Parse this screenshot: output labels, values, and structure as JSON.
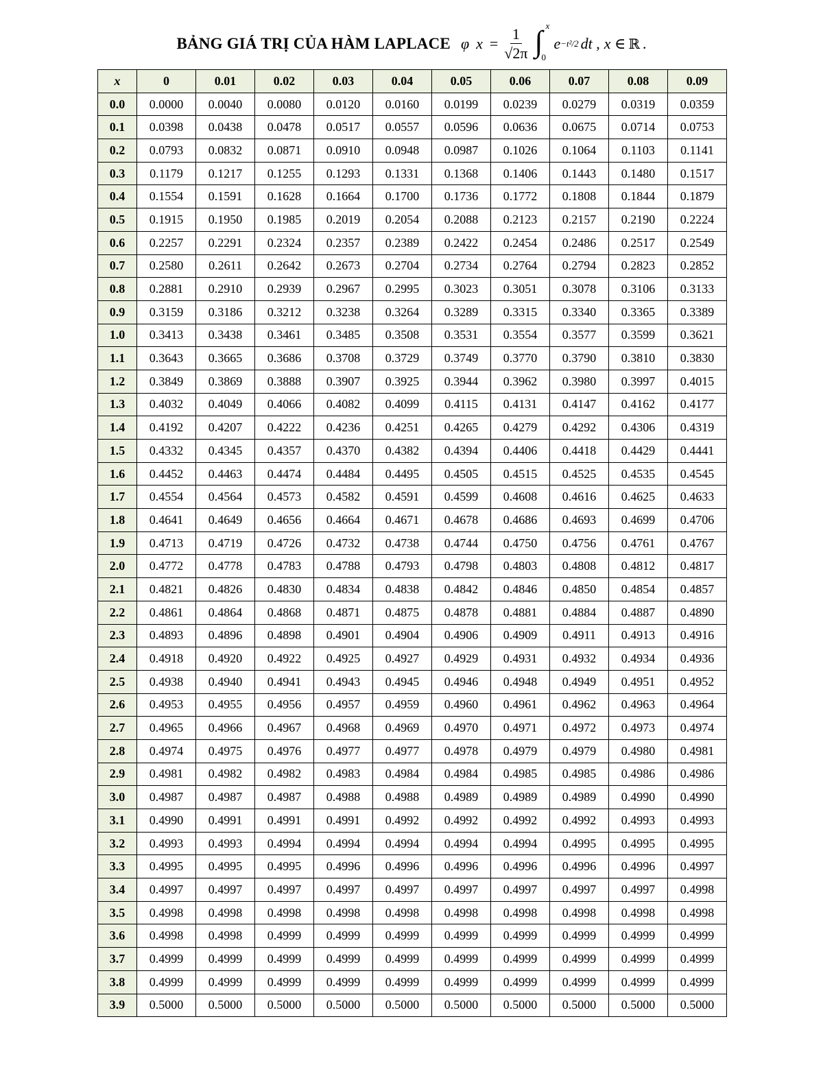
{
  "title": {
    "text": "BẢNG GIÁ TRỊ CỦA HÀM LAPLACE",
    "phi": "φ",
    "x": "x",
    "equals": "=",
    "numerator": "1",
    "denominator": "√2π",
    "integral": "∫",
    "upper_limit": "x",
    "lower_limit": "0",
    "integrand": "e",
    "exponent": "−t²/2",
    "dt": "dt ,",
    "membership": "x ∈",
    "reals": "ℝ",
    "period": "."
  },
  "table": {
    "corner": "x",
    "columns": [
      "0",
      "0.01",
      "0.02",
      "0.03",
      "0.04",
      "0.05",
      "0.06",
      "0.07",
      "0.08",
      "0.09"
    ],
    "rows": [
      {
        "x": "0.0",
        "v": [
          "0.0000",
          "0.0040",
          "0.0080",
          "0.0120",
          "0.0160",
          "0.0199",
          "0.0239",
          "0.0279",
          "0.0319",
          "0.0359"
        ]
      },
      {
        "x": "0.1",
        "v": [
          "0.0398",
          "0.0438",
          "0.0478",
          "0.0517",
          "0.0557",
          "0.0596",
          "0.0636",
          "0.0675",
          "0.0714",
          "0.0753"
        ]
      },
      {
        "x": "0.2",
        "v": [
          "0.0793",
          "0.0832",
          "0.0871",
          "0.0910",
          "0.0948",
          "0.0987",
          "0.1026",
          "0.1064",
          "0.1103",
          "0.1141"
        ]
      },
      {
        "x": "0.3",
        "v": [
          "0.1179",
          "0.1217",
          "0.1255",
          "0.1293",
          "0.1331",
          "0.1368",
          "0.1406",
          "0.1443",
          "0.1480",
          "0.1517"
        ]
      },
      {
        "x": "0.4",
        "v": [
          "0.1554",
          "0.1591",
          "0.1628",
          "0.1664",
          "0.1700",
          "0.1736",
          "0.1772",
          "0.1808",
          "0.1844",
          "0.1879"
        ]
      },
      {
        "x": "0.5",
        "v": [
          "0.1915",
          "0.1950",
          "0.1985",
          "0.2019",
          "0.2054",
          "0.2088",
          "0.2123",
          "0.2157",
          "0.2190",
          "0.2224"
        ]
      },
      {
        "x": "0.6",
        "v": [
          "0.2257",
          "0.2291",
          "0.2324",
          "0.2357",
          "0.2389",
          "0.2422",
          "0.2454",
          "0.2486",
          "0.2517",
          "0.2549"
        ]
      },
      {
        "x": "0.7",
        "v": [
          "0.2580",
          "0.2611",
          "0.2642",
          "0.2673",
          "0.2704",
          "0.2734",
          "0.2764",
          "0.2794",
          "0.2823",
          "0.2852"
        ]
      },
      {
        "x": "0.8",
        "v": [
          "0.2881",
          "0.2910",
          "0.2939",
          "0.2967",
          "0.2995",
          "0.3023",
          "0.3051",
          "0.3078",
          "0.3106",
          "0.3133"
        ]
      },
      {
        "x": "0.9",
        "v": [
          "0.3159",
          "0.3186",
          "0.3212",
          "0.3238",
          "0.3264",
          "0.3289",
          "0.3315",
          "0.3340",
          "0.3365",
          "0.3389"
        ]
      },
      {
        "x": "1.0",
        "v": [
          "0.3413",
          "0.3438",
          "0.3461",
          "0.3485",
          "0.3508",
          "0.3531",
          "0.3554",
          "0.3577",
          "0.3599",
          "0.3621"
        ]
      },
      {
        "x": "1.1",
        "v": [
          "0.3643",
          "0.3665",
          "0.3686",
          "0.3708",
          "0.3729",
          "0.3749",
          "0.3770",
          "0.3790",
          "0.3810",
          "0.3830"
        ]
      },
      {
        "x": "1.2",
        "v": [
          "0.3849",
          "0.3869",
          "0.3888",
          "0.3907",
          "0.3925",
          "0.3944",
          "0.3962",
          "0.3980",
          "0.3997",
          "0.4015"
        ]
      },
      {
        "x": "1.3",
        "v": [
          "0.4032",
          "0.4049",
          "0.4066",
          "0.4082",
          "0.4099",
          "0.4115",
          "0.4131",
          "0.4147",
          "0.4162",
          "0.4177"
        ]
      },
      {
        "x": "1.4",
        "v": [
          "0.4192",
          "0.4207",
          "0.4222",
          "0.4236",
          "0.4251",
          "0.4265",
          "0.4279",
          "0.4292",
          "0.4306",
          "0.4319"
        ]
      },
      {
        "x": "1.5",
        "v": [
          "0.4332",
          "0.4345",
          "0.4357",
          "0.4370",
          "0.4382",
          "0.4394",
          "0.4406",
          "0.4418",
          "0.4429",
          "0.4441"
        ]
      },
      {
        "x": "1.6",
        "v": [
          "0.4452",
          "0.4463",
          "0.4474",
          "0.4484",
          "0.4495",
          "0.4505",
          "0.4515",
          "0.4525",
          "0.4535",
          "0.4545"
        ]
      },
      {
        "x": "1.7",
        "v": [
          "0.4554",
          "0.4564",
          "0.4573",
          "0.4582",
          "0.4591",
          "0.4599",
          "0.4608",
          "0.4616",
          "0.4625",
          "0.4633"
        ]
      },
      {
        "x": "1.8",
        "v": [
          "0.4641",
          "0.4649",
          "0.4656",
          "0.4664",
          "0.4671",
          "0.4678",
          "0.4686",
          "0.4693",
          "0.4699",
          "0.4706"
        ]
      },
      {
        "x": "1.9",
        "v": [
          "0.4713",
          "0.4719",
          "0.4726",
          "0.4732",
          "0.4738",
          "0.4744",
          "0.4750",
          "0.4756",
          "0.4761",
          "0.4767"
        ]
      },
      {
        "x": "2.0",
        "v": [
          "0.4772",
          "0.4778",
          "0.4783",
          "0.4788",
          "0.4793",
          "0.4798",
          "0.4803",
          "0.4808",
          "0.4812",
          "0.4817"
        ]
      },
      {
        "x": "2.1",
        "v": [
          "0.4821",
          "0.4826",
          "0.4830",
          "0.4834",
          "0.4838",
          "0.4842",
          "0.4846",
          "0.4850",
          "0.4854",
          "0.4857"
        ]
      },
      {
        "x": "2.2",
        "v": [
          "0.4861",
          "0.4864",
          "0.4868",
          "0.4871",
          "0.4875",
          "0.4878",
          "0.4881",
          "0.4884",
          "0.4887",
          "0.4890"
        ]
      },
      {
        "x": "2.3",
        "v": [
          "0.4893",
          "0.4896",
          "0.4898",
          "0.4901",
          "0.4904",
          "0.4906",
          "0.4909",
          "0.4911",
          "0.4913",
          "0.4916"
        ]
      },
      {
        "x": "2.4",
        "v": [
          "0.4918",
          "0.4920",
          "0.4922",
          "0.4925",
          "0.4927",
          "0.4929",
          "0.4931",
          "0.4932",
          "0.4934",
          "0.4936"
        ]
      },
      {
        "x": "2.5",
        "v": [
          "0.4938",
          "0.4940",
          "0.4941",
          "0.4943",
          "0.4945",
          "0.4946",
          "0.4948",
          "0.4949",
          "0.4951",
          "0.4952"
        ]
      },
      {
        "x": "2.6",
        "v": [
          "0.4953",
          "0.4955",
          "0.4956",
          "0.4957",
          "0.4959",
          "0.4960",
          "0.4961",
          "0.4962",
          "0.4963",
          "0.4964"
        ]
      },
      {
        "x": "2.7",
        "v": [
          "0.4965",
          "0.4966",
          "0.4967",
          "0.4968",
          "0.4969",
          "0.4970",
          "0.4971",
          "0.4972",
          "0.4973",
          "0.4974"
        ]
      },
      {
        "x": "2.8",
        "v": [
          "0.4974",
          "0.4975",
          "0.4976",
          "0.4977",
          "0.4977",
          "0.4978",
          "0.4979",
          "0.4979",
          "0.4980",
          "0.4981"
        ]
      },
      {
        "x": "2.9",
        "v": [
          "0.4981",
          "0.4982",
          "0.4982",
          "0.4983",
          "0.4984",
          "0.4984",
          "0.4985",
          "0.4985",
          "0.4986",
          "0.4986"
        ]
      },
      {
        "x": "3.0",
        "v": [
          "0.4987",
          "0.4987",
          "0.4987",
          "0.4988",
          "0.4988",
          "0.4989",
          "0.4989",
          "0.4989",
          "0.4990",
          "0.4990"
        ]
      },
      {
        "x": "3.1",
        "v": [
          "0.4990",
          "0.4991",
          "0.4991",
          "0.4991",
          "0.4992",
          "0.4992",
          "0.4992",
          "0.4992",
          "0.4993",
          "0.4993"
        ]
      },
      {
        "x": "3.2",
        "v": [
          "0.4993",
          "0.4993",
          "0.4994",
          "0.4994",
          "0.4994",
          "0.4994",
          "0.4994",
          "0.4995",
          "0.4995",
          "0.4995"
        ]
      },
      {
        "x": "3.3",
        "v": [
          "0.4995",
          "0.4995",
          "0.4995",
          "0.4996",
          "0.4996",
          "0.4996",
          "0.4996",
          "0.4996",
          "0.4996",
          "0.4997"
        ]
      },
      {
        "x": "3.4",
        "v": [
          "0.4997",
          "0.4997",
          "0.4997",
          "0.4997",
          "0.4997",
          "0.4997",
          "0.4997",
          "0.4997",
          "0.4997",
          "0.4998"
        ]
      },
      {
        "x": "3.5",
        "v": [
          "0.4998",
          "0.4998",
          "0.4998",
          "0.4998",
          "0.4998",
          "0.4998",
          "0.4998",
          "0.4998",
          "0.4998",
          "0.4998"
        ]
      },
      {
        "x": "3.6",
        "v": [
          "0.4998",
          "0.4998",
          "0.4999",
          "0.4999",
          "0.4999",
          "0.4999",
          "0.4999",
          "0.4999",
          "0.4999",
          "0.4999"
        ]
      },
      {
        "x": "3.7",
        "v": [
          "0.4999",
          "0.4999",
          "0.4999",
          "0.4999",
          "0.4999",
          "0.4999",
          "0.4999",
          "0.4999",
          "0.4999",
          "0.4999"
        ]
      },
      {
        "x": "3.8",
        "v": [
          "0.4999",
          "0.4999",
          "0.4999",
          "0.4999",
          "0.4999",
          "0.4999",
          "0.4999",
          "0.4999",
          "0.4999",
          "0.4999"
        ]
      },
      {
        "x": "3.9",
        "v": [
          "0.5000",
          "0.5000",
          "0.5000",
          "0.5000",
          "0.5000",
          "0.5000",
          "0.5000",
          "0.5000",
          "0.5000",
          "0.5000"
        ]
      }
    ]
  },
  "colors": {
    "header_fill": "#ebf1de",
    "border": "#000000"
  }
}
